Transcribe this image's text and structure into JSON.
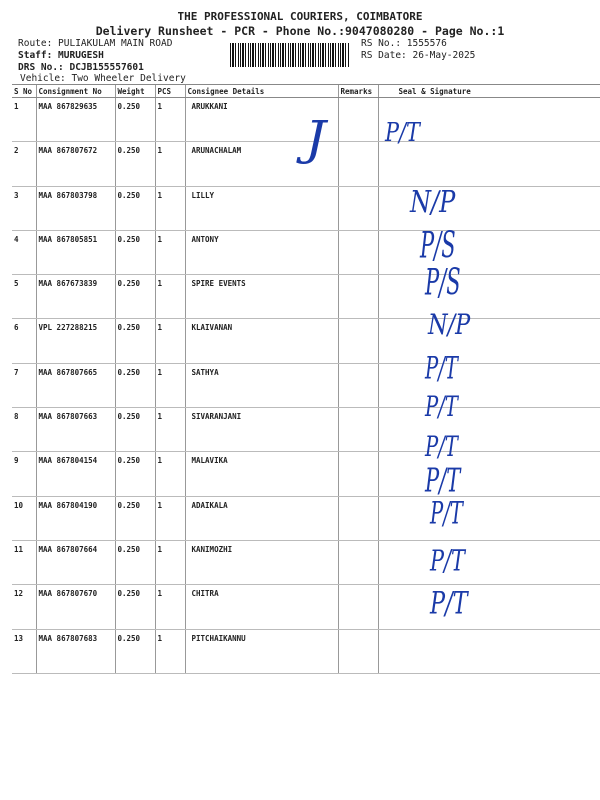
{
  "header": {
    "company": "THE PROFESSIONAL COURIERS, COIMBATORE",
    "subtitle": "Delivery Runsheet - PCR - Phone No.:9047080280 - Page No.:1",
    "route": "Route: PULIAKULAM MAIN ROAD",
    "staff": "Staff: MURUGESH",
    "drs": "DRS No.: DCJB155557601",
    "vehicle": "Vehicle: Two Wheeler Delivery",
    "rs_no": "RS No.: 1555576",
    "rs_date": "RS Date: 26-May-2025"
  },
  "columns": [
    "S No",
    "Consignment No",
    "Weight",
    "PCS",
    "Consignee Details",
    "Remarks",
    "Seal & Signature"
  ],
  "rows": [
    {
      "sno": "1",
      "cn": "MAA 867829635",
      "wt": "0.250",
      "pcs": "1",
      "name": "ARUKKANI"
    },
    {
      "sno": "2",
      "cn": "MAA 867807672",
      "wt": "0.250",
      "pcs": "1",
      "name": "ARUNACHALAM"
    },
    {
      "sno": "3",
      "cn": "MAA 867803798",
      "wt": "0.250",
      "pcs": "1",
      "name": "LILLY"
    },
    {
      "sno": "4",
      "cn": "MAA 867805851",
      "wt": "0.250",
      "pcs": "1",
      "name": "ANTONY"
    },
    {
      "sno": "5",
      "cn": "MAA 867673839",
      "wt": "0.250",
      "pcs": "1",
      "name": "SPIRE EVENTS"
    },
    {
      "sno": "6",
      "cn": "VPL 227288215",
      "wt": "0.250",
      "pcs": "1",
      "name": "KLAIVANAN"
    },
    {
      "sno": "7",
      "cn": "MAA 867807665",
      "wt": "0.250",
      "pcs": "1",
      "name": "SATHYA"
    },
    {
      "sno": "8",
      "cn": "MAA 867807663",
      "wt": "0.250",
      "pcs": "1",
      "name": "SIVARANJANI"
    },
    {
      "sno": "9",
      "cn": "MAA 867804154",
      "wt": "0.250",
      "pcs": "1",
      "name": "MALAVIKA"
    },
    {
      "sno": "10",
      "cn": "MAA 867804190",
      "wt": "0.250",
      "pcs": "1",
      "name": "ADAIKALA"
    },
    {
      "sno": "11",
      "cn": "MAA 867807664",
      "wt": "0.250",
      "pcs": "1",
      "name": "KANIMOZHI"
    },
    {
      "sno": "12",
      "cn": "MAA 867807670",
      "wt": "0.250",
      "pcs": "1",
      "name": "CHITRA"
    },
    {
      "sno": "13",
      "cn": "MAA 867807683",
      "wt": "0.250",
      "pcs": "1",
      "name": "PITCHAIKANNU"
    }
  ],
  "handwriting": [
    "J",
    "P/T",
    "N/P",
    "P/S",
    "P/S",
    "N/P",
    "P/T",
    "P/T",
    "P/T",
    "P/T",
    "P/T",
    "P/T",
    "P/T"
  ],
  "ink_color": "#1a3aa8"
}
